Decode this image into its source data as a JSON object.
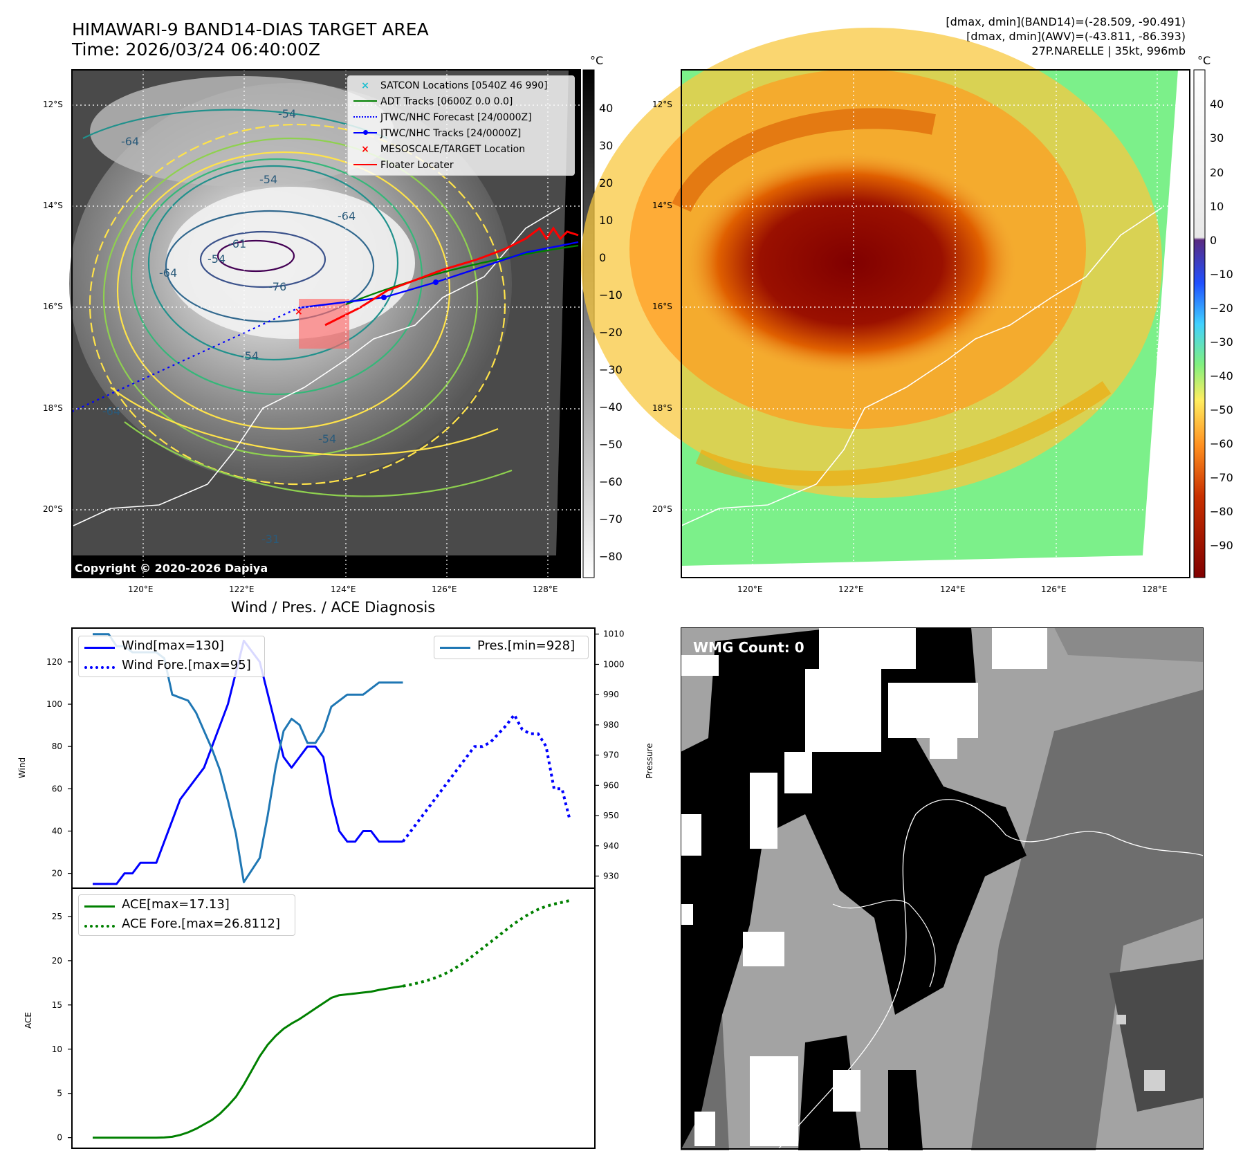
{
  "header": {
    "title_line1": "HIMAWARI-9 BAND14-DIAS TARGET AREA",
    "title_line2": "Time: 2026/03/24 06:40:00Z",
    "info_line1": "[dmax, dmin](BAND14)=(-28.509, -90.491)",
    "info_line2": "[dmax, dmin](AWV)=(-43.811, -86.393)",
    "info_line3": "27P.NARELLE | 35kt, 996mb"
  },
  "map_axes": {
    "lat_labels": [
      "12°S",
      "14°S",
      "16°S",
      "18°S",
      "20°S"
    ],
    "lon_labels": [
      "120°E",
      "122°E",
      "124°E",
      "126°E",
      "128°E"
    ]
  },
  "ir_panel": {
    "unit": "°C",
    "colorbar_ticks": [
      "40",
      "30",
      "20",
      "10",
      "0",
      "−10",
      "−20",
      "−30",
      "−40",
      "−50",
      "−60",
      "−70",
      "−80"
    ],
    "copyright": "Copyright © 2020-2026 Dapiya",
    "contour_labels": [
      "-64",
      "-54",
      "-54",
      "-64",
      "-54",
      "-61",
      "-64",
      "-76",
      "-54",
      "-64",
      "-54",
      "-31"
    ],
    "legend": [
      "SATCON Locations [0540Z 46 990]",
      "ADT Tracks [0600Z 0.0 0.0]",
      "JTWC/NHC Forecast [24/0000Z]",
      "JTWC/NHC Tracks [24/0000Z]",
      "MESOSCALE/TARGET Location",
      "Floater Locater"
    ]
  },
  "awv_panel": {
    "unit": "°C",
    "colorbar_ticks": [
      "40",
      "30",
      "20",
      "10",
      "0",
      "−10",
      "−20",
      "−30",
      "−40",
      "−50",
      "−60",
      "−70",
      "−80",
      "−90"
    ]
  },
  "diagnosis": {
    "title": "Wind / Pres. / ACE Diagnosis",
    "wind_ylabel": "Wind",
    "pres_ylabel": "Pressure",
    "ace_ylabel": "ACE",
    "wind_ticks": [
      "20",
      "40",
      "60",
      "80",
      "100",
      "120"
    ],
    "pres_ticks": [
      "930",
      "940",
      "950",
      "960",
      "970",
      "980",
      "990",
      "1000",
      "1010"
    ],
    "ace_ticks": [
      "0",
      "5",
      "10",
      "15",
      "20",
      "25"
    ],
    "legend_wind": "Wind[max=130]",
    "legend_wind_fore": "Wind Fore.[max=95]",
    "legend_pres": "Pres.[min=928]",
    "legend_ace": "ACE[max=17.13]",
    "legend_ace_fore": "ACE Fore.[max=26.8112]"
  },
  "wmg_panel": {
    "label": "WMG Count: 0"
  },
  "chart_data": [
    {
      "type": "line",
      "title": "Wind / Pres. / ACE Diagnosis",
      "xlabel": "",
      "ylabel": "Wind",
      "ylim": [
        13,
        136
      ],
      "series": [
        {
          "name": "Wind[max=130]",
          "style": "solid",
          "color": "#0000ff",
          "axis": "left",
          "x": [
            0,
            1,
            2,
            3,
            4,
            5,
            6,
            7,
            8,
            9,
            10,
            11,
            12,
            13,
            14,
            15,
            16,
            17,
            18,
            19,
            20,
            21,
            22,
            23,
            24,
            25,
            26,
            27,
            28,
            29,
            30,
            31,
            32,
            33,
            34,
            35,
            36,
            37,
            38,
            39
          ],
          "values": [
            15,
            15,
            15,
            15,
            20,
            20,
            25,
            25,
            25,
            35,
            45,
            55,
            60,
            65,
            70,
            80,
            90,
            100,
            115,
            130,
            125,
            120,
            105,
            90,
            75,
            70,
            75,
            80,
            80,
            75,
            55,
            40,
            35,
            35,
            40,
            40,
            35,
            35,
            35,
            35
          ]
        },
        {
          "name": "Wind Fore.[max=95]",
          "style": "dotted",
          "color": "#0000ff",
          "axis": "left",
          "x": [
            39,
            40,
            41,
            42,
            43,
            44,
            45,
            46,
            47,
            48,
            49,
            50,
            51,
            52,
            53,
            54,
            55,
            56,
            57,
            58,
            59,
            60
          ],
          "values": [
            35,
            40,
            45,
            50,
            55,
            60,
            65,
            70,
            75,
            80,
            80,
            82,
            86,
            90,
            95,
            88,
            86,
            86,
            80,
            60,
            60,
            45
          ]
        },
        {
          "name": "Pres.[min=928]",
          "style": "solid",
          "color": "#1f77b4",
          "axis": "right",
          "ylim": [
            926,
            1012
          ],
          "x": [
            0,
            2,
            3,
            4,
            5,
            6,
            8,
            9,
            10,
            11,
            12,
            13,
            14,
            15,
            16,
            17,
            18,
            19,
            20,
            21,
            22,
            23,
            24,
            25,
            26,
            27,
            28,
            29,
            30,
            31,
            32,
            33,
            34,
            35,
            36,
            37,
            38,
            39
          ],
          "values": [
            1010,
            1010,
            1006,
            1006,
            1004,
            1004,
            1004,
            1002,
            990,
            989,
            988,
            984,
            978,
            972,
            965,
            955,
            944,
            928,
            932,
            936,
            950,
            966,
            978,
            982,
            980,
            974,
            974,
            978,
            986,
            988,
            990,
            990,
            990,
            992,
            994,
            994,
            994,
            994
          ]
        }
      ]
    },
    {
      "type": "line",
      "xlabel": "",
      "ylabel": "ACE",
      "ylim": [
        -1.2,
        28.2
      ],
      "series": [
        {
          "name": "ACE[max=17.13]",
          "style": "solid",
          "color": "#008000",
          "x": [
            0,
            1,
            2,
            3,
            4,
            5,
            6,
            7,
            8,
            9,
            10,
            11,
            12,
            13,
            14,
            15,
            16,
            17,
            18,
            19,
            20,
            21,
            22,
            23,
            24,
            25,
            26,
            27,
            28,
            29,
            30,
            31,
            32,
            33,
            34,
            35,
            36,
            37,
            38,
            39
          ],
          "values": [
            0,
            0,
            0,
            0,
            0,
            0,
            0,
            0,
            0,
            0.02,
            0.1,
            0.3,
            0.6,
            1.0,
            1.5,
            2.0,
            2.7,
            3.6,
            4.6,
            6.0,
            7.6,
            9.2,
            10.5,
            11.5,
            12.3,
            12.9,
            13.4,
            14.0,
            14.6,
            15.2,
            15.8,
            16.1,
            16.2,
            16.3,
            16.4,
            16.5,
            16.7,
            16.85,
            17.0,
            17.13
          ]
        },
        {
          "name": "ACE Fore.[max=26.8112]",
          "style": "dotted",
          "color": "#008000",
          "x": [
            39,
            40,
            41,
            42,
            43,
            44,
            45,
            46,
            47,
            48,
            49,
            50,
            51,
            52,
            53,
            54,
            55,
            56,
            57,
            58,
            59,
            60
          ],
          "values": [
            17.13,
            17.3,
            17.5,
            17.75,
            18.05,
            18.4,
            18.85,
            19.4,
            20.0,
            20.7,
            21.4,
            22.1,
            22.8,
            23.5,
            24.2,
            24.8,
            25.35,
            25.8,
            26.15,
            26.4,
            26.6,
            26.8112
          ]
        }
      ]
    }
  ]
}
